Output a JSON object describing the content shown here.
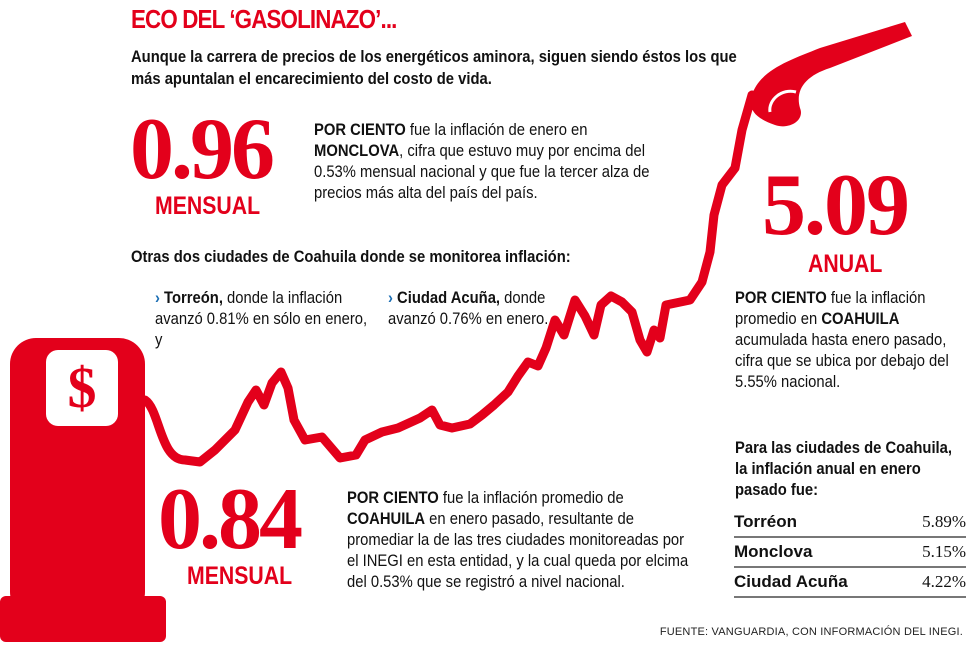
{
  "title": "ECO DEL ‘GASOLINAZO’...",
  "subtitle": "Aunque la carrera de precios de los energéticos aminora, siguen siendo éstos los que más apuntalan el encarecimiento del costo de vida.",
  "monclova": {
    "value": "0.96",
    "label": "MENSUAL",
    "lead": "POR CIENTO",
    "t1": " fue la inflación de enero en ",
    "city": "MONCLOVA",
    "t2": ", cifra que estuvo muy por encima del 0.53% mensual nacional y que fue la tercer alza de precios más alta del país del país."
  },
  "others_heading": "Otras dos ciudades de Coahuila donde se monitorea inflación:",
  "others": [
    {
      "city": "Torreón,",
      "text": " donde la inflación avanzó 0.81% en sólo en enero, y"
    },
    {
      "city": "Ciudad Acuña,",
      "text": " donde avanzó 0.76% en enero."
    }
  ],
  "coahuila_monthly": {
    "value": "0.84",
    "label": "MENSUAL",
    "lead": "POR CIENTO",
    "t1": " fue la inflación promedio de ",
    "state": "COAHUILA",
    "t2": " en enero pasado, resultante de promediar la de las tres ciudades monitoreadas por el INEGI en esta entidad, y la cual queda por elcima del 0.53% que se registró a nivel nacional."
  },
  "coahuila_annual": {
    "value": "5.09",
    "label": "ANUAL",
    "lead": "POR CIENTO",
    "t1": " fue la inflación promedio en ",
    "state": "COAHUILA",
    "t2": " acumulada hasta enero pasado, cifra que se ubica por debajo del 5.55% nacional."
  },
  "table": {
    "heading": "Para las ciudades de Coahuila, la inflación anual en enero pasado fue:",
    "rows": [
      {
        "city": "Torréon",
        "value": "5.89%"
      },
      {
        "city": "Monclova",
        "value": "5.15%"
      },
      {
        "city": "Ciudad Acuña",
        "value": "4.22%"
      }
    ]
  },
  "pump_symbol": "$",
  "source": "FUENTE: VANGUARDIA, CON INFORMACIÓN DEL INEGI.",
  "colors": {
    "accent": "#e3001b",
    "bullet": "#1a6db3"
  }
}
